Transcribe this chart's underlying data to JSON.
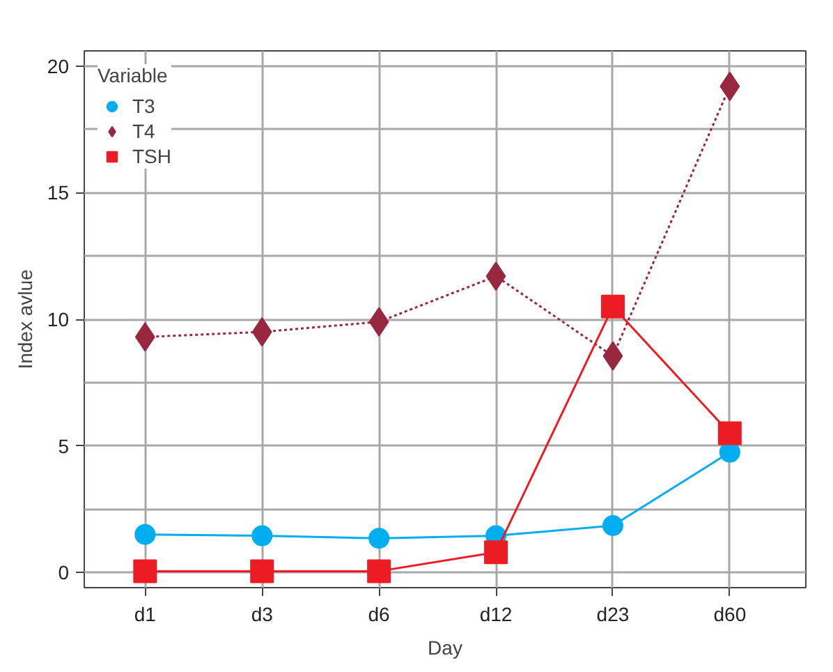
{
  "chart_data": {
    "type": "line",
    "xlabel": "Day",
    "ylabel": "Index avlue",
    "legend_title": "Variable",
    "legend": "top left",
    "grid": true,
    "categories": [
      "d1",
      "d3",
      "d6",
      "d12",
      "d23",
      "d60"
    ],
    "ylim": [
      -0.6,
      20.6
    ],
    "yticks": [
      0,
      {
        "value": 2.5,
        "label": null
      },
      5,
      {
        "value": 7.5,
        "label": null
      },
      10,
      {
        "value": 12.5,
        "label": null
      },
      15,
      {
        "value": 17.5,
        "label": null
      },
      20
    ],
    "series": [
      {
        "name": "T3",
        "color": "#00aeef",
        "marker": "circle",
        "line_style": "solid",
        "values": [
          1.5,
          1.45,
          1.35,
          1.45,
          1.85,
          4.75
        ]
      },
      {
        "name": "T4",
        "color": "#98283f",
        "marker": "diamond",
        "line_style": "dotted",
        "values": [
          9.3,
          9.5,
          9.9,
          11.7,
          8.55,
          19.2
        ]
      },
      {
        "name": "TSH",
        "color": "#ed1c24",
        "marker": "square",
        "line_style": "solid",
        "values": [
          0.05,
          0.05,
          0.05,
          0.8,
          10.5,
          5.5
        ]
      }
    ]
  }
}
